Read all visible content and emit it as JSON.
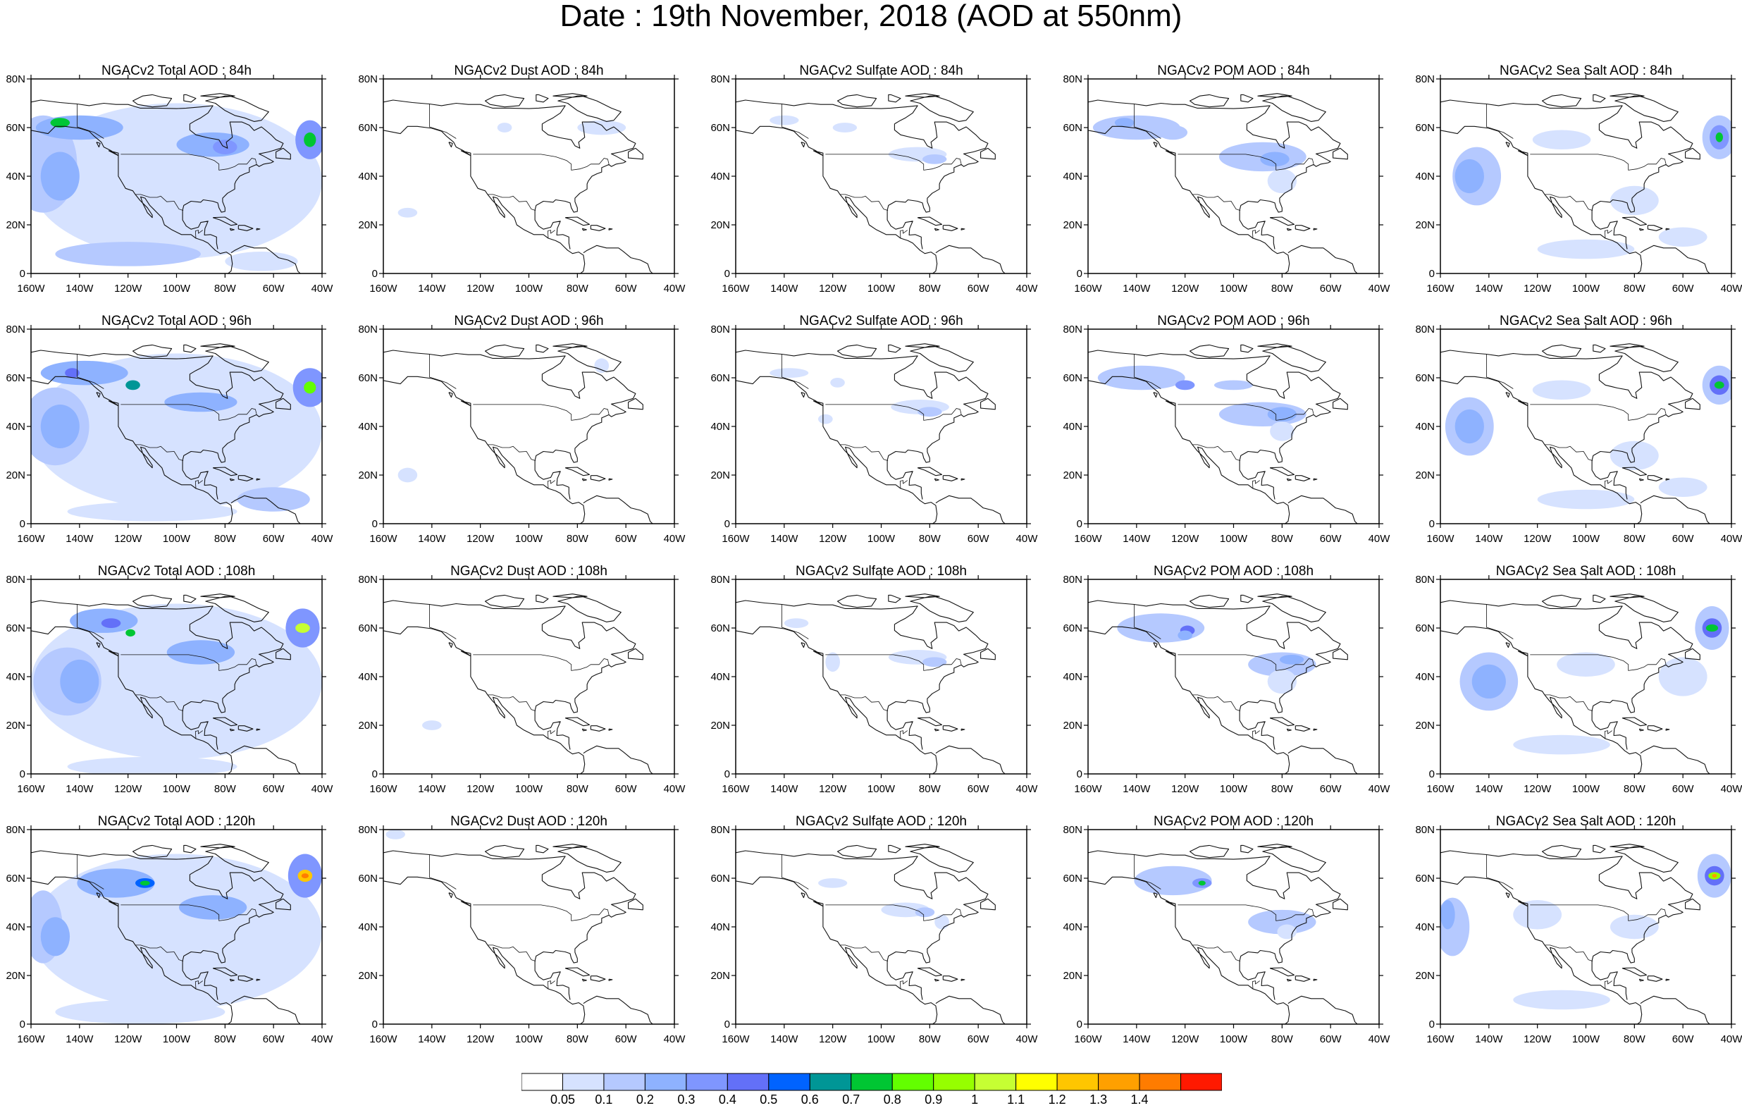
{
  "title": "Date : 19th November, 2018 (AOD at 550nm)",
  "axes": {
    "lon_ticks": [
      "160W",
      "140W",
      "120W",
      "100W",
      "80W",
      "60W",
      "40W"
    ],
    "lat_ticks": [
      "0",
      "20N",
      "40N",
      "60N",
      "80N"
    ],
    "lon_range": [
      -160,
      -40
    ],
    "lat_range": [
      0,
      80
    ]
  },
  "rows": [
    {
      "forecast_hour": "84h",
      "titles": [
        "NGACv2 Total AOD : 84h",
        "NGACv2 Dust AOD : 84h",
        "NGACv2 Sulfate AOD : 84h",
        "NGACv2 POM AOD : 84h",
        "NGACv2 Sea Salt AOD : 84h"
      ]
    },
    {
      "forecast_hour": "96h",
      "titles": [
        "NGACv2 Total AOD : 96h",
        "NGACv2 Dust AOD : 96h",
        "NGACv2 Sulfate AOD : 96h",
        "NGACv2 POM AOD : 96h",
        "NGACv2 Sea Salt AOD : 96h"
      ]
    },
    {
      "forecast_hour": "108h",
      "titles": [
        "NGACv2 Total AOD : 108h",
        "NGACv2 Dust AOD : 108h",
        "NGACv2 Sulfate AOD : 108h",
        "NGACv2 POM AOD : 108h",
        "NGACv2 Sea Salt AOD : 108h"
      ]
    },
    {
      "forecast_hour": "120h",
      "titles": [
        "NGACv2 Total AOD : 120h",
        "NGACv2 Dust AOD : 120h",
        "NGACv2 Sulfate AOD : 120h",
        "NGACv2 POM AOD : 120h",
        "NGACv2 Sea Salt  AOD : 120h"
      ]
    }
  ],
  "colorbar": {
    "labels": [
      "0.05",
      "0.1",
      "0.2",
      "0.3",
      "0.4",
      "0.5",
      "0.6",
      "0.7",
      "0.8",
      "0.9",
      "1",
      "1.1",
      "1.2",
      "1.3",
      "1.4"
    ],
    "colors": [
      "#ffffff",
      "#d6e2ff",
      "#b5c9ff",
      "#8eb2ff",
      "#7f96ff",
      "#6370f8",
      "#0063ff",
      "#009696",
      "#00c633",
      "#63ff00",
      "#96ff00",
      "#c6ff33",
      "#ffff00",
      "#ffc600",
      "#ffa000",
      "#ff7c00",
      "#ff1900"
    ]
  },
  "chart_data": {
    "type": "heatmap",
    "title": "Date : 19th November, 2018 (AOD at 550nm)",
    "variable": "AOD at 550nm",
    "forecast_hours": [
      "84h",
      "96h",
      "108h",
      "120h"
    ],
    "species": [
      "Total",
      "Dust",
      "Sulfate",
      "POM",
      "Sea Salt"
    ],
    "levels": [
      0.05,
      0.1,
      0.2,
      0.3,
      0.4,
      0.5,
      0.6,
      0.7,
      0.8,
      0.9,
      1,
      1.1,
      1.2,
      1.3,
      1.4
    ],
    "approx_hotspots": [
      {
        "species": "Total",
        "hour": "84h",
        "lon": -145,
        "lat": 62,
        "aod": 0.8
      },
      {
        "species": "Total",
        "hour": "84h",
        "lon": -45,
        "lat": 56,
        "aod": 0.8
      },
      {
        "species": "Total",
        "hour": "96h",
        "lon": -45,
        "lat": 57,
        "aod": 0.9
      },
      {
        "species": "Total",
        "hour": "108h",
        "lon": -48,
        "lat": 60,
        "aod": 1.1
      },
      {
        "species": "Total",
        "hour": "120h",
        "lon": -47,
        "lat": 62,
        "aod": 1.3
      },
      {
        "species": "Total",
        "hour": "120h",
        "lon": -113,
        "lat": 58,
        "aod": 0.7
      },
      {
        "species": "POM",
        "hour": "120h",
        "lon": -113,
        "lat": 58,
        "aod": 0.7
      },
      {
        "species": "Sea Salt",
        "hour": "84h",
        "lon": -45,
        "lat": 55,
        "aod": 0.8
      },
      {
        "species": "Sea Salt",
        "hour": "96h",
        "lon": -45,
        "lat": 57,
        "aod": 0.8
      },
      {
        "species": "Sea Salt",
        "hour": "108h",
        "lon": -48,
        "lat": 59,
        "aod": 0.9
      },
      {
        "species": "Sea Salt",
        "hour": "120h",
        "lon": -47,
        "lat": 61,
        "aod": 1.1
      }
    ]
  }
}
